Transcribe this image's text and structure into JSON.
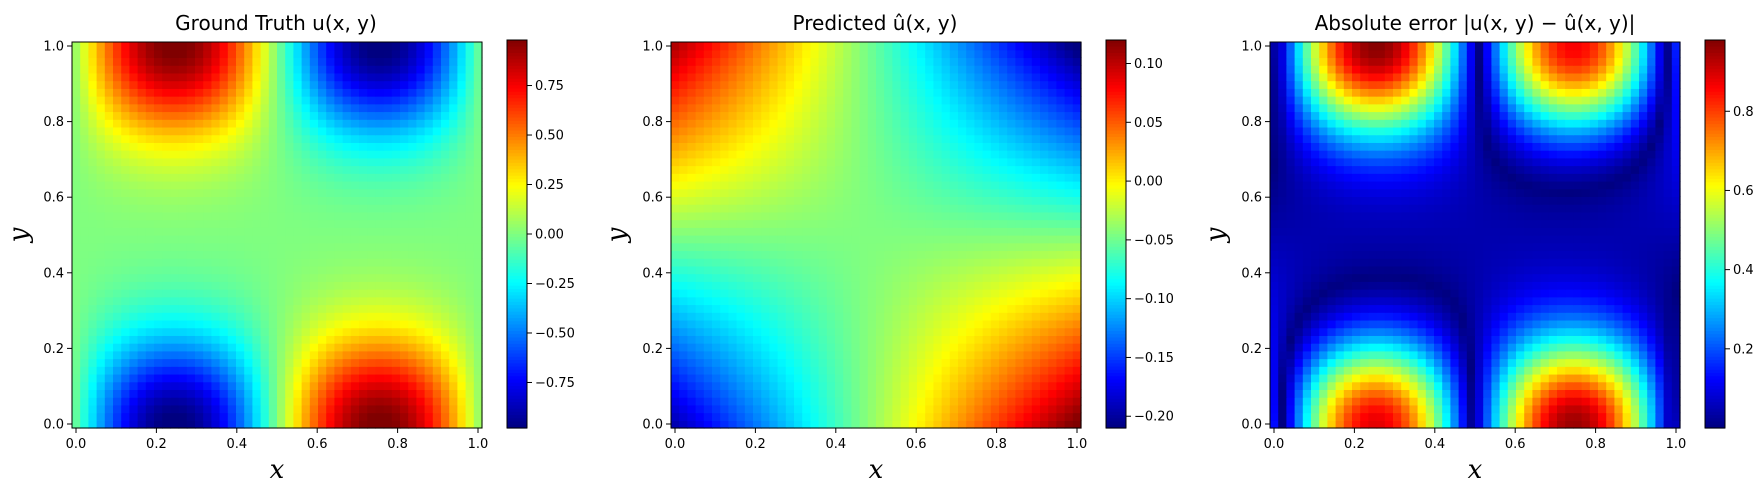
{
  "figure": {
    "caption_panels": 3
  },
  "chart_data": [
    {
      "type": "heatmap",
      "title": "Ground Truth u(x, y)",
      "xlabel": "x",
      "ylabel": "y",
      "xlim": [
        0,
        1
      ],
      "ylim": [
        0,
        1
      ],
      "xticks": [
        "0.0",
        "0.2",
        "0.4",
        "0.6",
        "0.8",
        "1.0"
      ],
      "yticks": [
        "0.0",
        "0.2",
        "0.4",
        "0.6",
        "0.8",
        "1.0"
      ],
      "colormap": "jet",
      "colorbar_range": [
        -0.98,
        0.98
      ],
      "colorbar_ticks": [
        {
          "value": 0.75,
          "label": "0.75"
        },
        {
          "value": 0.5,
          "label": "0.50"
        },
        {
          "value": 0.25,
          "label": "0.25"
        },
        {
          "value": 0.0,
          "label": "0.00"
        },
        {
          "value": -0.25,
          "label": "−0.25"
        },
        {
          "value": -0.5,
          "label": "−0.50"
        },
        {
          "value": -0.75,
          "label": "−0.75"
        }
      ],
      "field": "ground_truth",
      "grid_resolution": 50
    },
    {
      "type": "heatmap",
      "title": "Predicted û(x, y)",
      "xlabel": "x",
      "ylabel": "y",
      "xlim": [
        0,
        1
      ],
      "ylim": [
        0,
        1
      ],
      "xticks": [
        "0.0",
        "0.2",
        "0.4",
        "0.6",
        "0.8",
        "1.0"
      ],
      "yticks": [
        "0.0",
        "0.2",
        "0.4",
        "0.6",
        "0.8",
        "1.0"
      ],
      "colormap": "jet",
      "colorbar_range": [
        -0.21,
        0.12
      ],
      "colorbar_ticks": [
        {
          "value": 0.1,
          "label": "0.10"
        },
        {
          "value": 0.05,
          "label": "0.05"
        },
        {
          "value": 0.0,
          "label": "0.00"
        },
        {
          "value": -0.05,
          "label": "−0.05"
        },
        {
          "value": -0.1,
          "label": "−0.10"
        },
        {
          "value": -0.15,
          "label": "−0.15"
        },
        {
          "value": -0.2,
          "label": "−0.20"
        }
      ],
      "field": "predicted",
      "grid_resolution": 50
    },
    {
      "type": "heatmap",
      "title": "Absolute error |u(x, y) − û(x, y)|",
      "xlabel": "x",
      "ylabel": "y",
      "xlim": [
        0,
        1
      ],
      "ylim": [
        0,
        1
      ],
      "xticks": [
        "0.0",
        "0.2",
        "0.4",
        "0.6",
        "0.8",
        "1.0"
      ],
      "yticks": [
        "0.0",
        "0.2",
        "0.4",
        "0.6",
        "0.8",
        "1.0"
      ],
      "colormap": "jet",
      "colorbar_range": [
        0.0,
        0.98
      ],
      "colorbar_ticks": [
        {
          "value": 0.8,
          "label": "0.8"
        },
        {
          "value": 0.6,
          "label": "0.6"
        },
        {
          "value": 0.4,
          "label": "0.4"
        },
        {
          "value": 0.2,
          "label": "0.2"
        }
      ],
      "field": "abs_error",
      "grid_resolution": 50
    }
  ]
}
